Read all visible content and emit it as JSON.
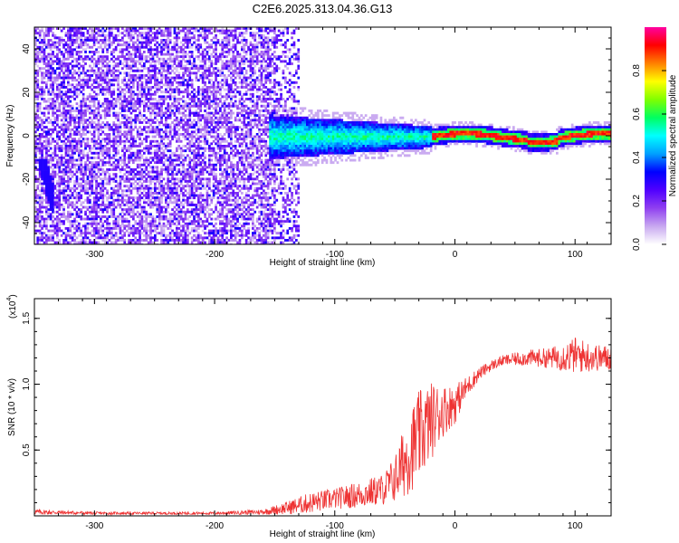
{
  "title": "C2E6.2025.313.04.36.G13",
  "chart_data": [
    {
      "type": "heatmap",
      "xlabel": "Height of straight line (km)",
      "ylabel": "Frequency (Hz)",
      "xlim": [
        -350,
        130
      ],
      "ylim": [
        -50,
        50
      ],
      "xticks": [
        -300,
        -200,
        -100,
        0,
        100
      ],
      "yticks": [
        -40,
        -20,
        0,
        20,
        40
      ],
      "colorbar": {
        "label": "Normalized spectral amplitude",
        "range": [
          0,
          1
        ],
        "ticks": [
          "0.0",
          "0.2",
          "0.4",
          "0.6",
          "0.8"
        ],
        "colors": [
          "#ffffff",
          "#c8a8f0",
          "#9040f0",
          "#5000ff",
          "#0000ff",
          "#00a0ff",
          "#00ffff",
          "#00ff60",
          "#80ff00",
          "#ffff00",
          "#ff8000",
          "#ff0000",
          "#ff00a0"
        ]
      },
      "regions": [
        {
          "x_range": [
            -350,
            -130
          ],
          "freq_range": [
            -50,
            50
          ],
          "amplitude": "low (0.05-0.3)"
        },
        {
          "x_range": [
            -155,
            -20
          ],
          "freq_center": 0,
          "freq_halfwidth": 10,
          "amplitude": "0.3-0.6"
        },
        {
          "x_range": [
            -20,
            130
          ],
          "freq_center": 0,
          "freq_halfwidth": 3,
          "amplitude": "0.7-1.0"
        }
      ]
    },
    {
      "type": "line",
      "xlabel": "Height of straight line (km)",
      "ylabel": "SNR (10 * v/v)",
      "scale_label": "(x10",
      "scale_exp": "4",
      "xlim": [
        -350,
        130
      ],
      "ylim": [
        0,
        1.65
      ],
      "xticks": [
        -300,
        -200,
        -100,
        0,
        100
      ],
      "yticks": [
        "0.5",
        "1.0",
        "1.5"
      ],
      "series": [
        {
          "color": "#ee3333",
          "x": [
            -350,
            -300,
            -250,
            -200,
            -160,
            -140,
            -120,
            -100,
            -80,
            -60,
            -50,
            -40,
            -30,
            -20,
            -10,
            0,
            10,
            20,
            30,
            40,
            60,
            80,
            100,
            120,
            130
          ],
          "y": [
            0.03,
            0.02,
            0.02,
            0.02,
            0.03,
            0.06,
            0.1,
            0.13,
            0.16,
            0.2,
            0.28,
            0.45,
            0.6,
            0.72,
            0.8,
            0.85,
            0.98,
            1.08,
            1.14,
            1.18,
            1.2,
            1.2,
            1.22,
            1.2,
            1.2
          ],
          "noise": [
            0.02,
            0.01,
            0.01,
            0.01,
            0.02,
            0.05,
            0.08,
            0.08,
            0.1,
            0.12,
            0.18,
            0.3,
            0.35,
            0.3,
            0.2,
            0.15,
            0.08,
            0.05,
            0.04,
            0.04,
            0.06,
            0.08,
            0.14,
            0.1,
            0.1
          ]
        }
      ]
    }
  ]
}
